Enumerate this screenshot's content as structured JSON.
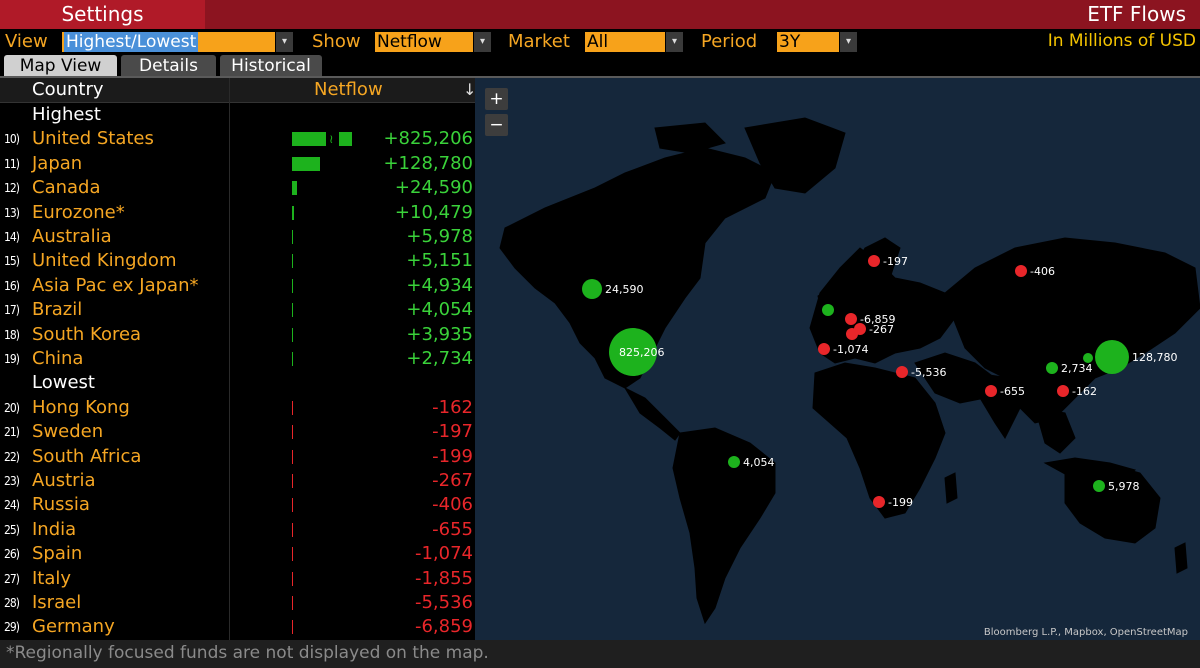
{
  "header": {
    "settings_label": "Settings",
    "title": "ETF Flows"
  },
  "filters": {
    "view_label": "View",
    "view_value": "Highest/Lowest",
    "show_label": "Show",
    "show_value": "Netflow",
    "market_label": "Market",
    "market_value": "All",
    "period_label": "Period",
    "period_value": "3Y",
    "units": "In Millions of USD",
    "dropdown_glyph": "▾"
  },
  "tabs": [
    {
      "label": "Map View",
      "active": true
    },
    {
      "label": "Details",
      "active": false
    },
    {
      "label": "Historical",
      "active": false
    }
  ],
  "table": {
    "col_country": "Country",
    "col_netflow": "Netflow",
    "sort_glyph": "↓",
    "highest_label": "Highest",
    "lowest_label": "Lowest",
    "highest": [
      {
        "rank": "10)",
        "country": "United States",
        "value": "+825,206",
        "flow": 825206
      },
      {
        "rank": "11)",
        "country": "Japan",
        "value": "+128,780",
        "flow": 128780
      },
      {
        "rank": "12)",
        "country": "Canada",
        "value": "+24,590",
        "flow": 24590
      },
      {
        "rank": "13)",
        "country": "Eurozone*",
        "value": "+10,479",
        "flow": 10479
      },
      {
        "rank": "14)",
        "country": "Australia",
        "value": "+5,978",
        "flow": 5978
      },
      {
        "rank": "15)",
        "country": "United Kingdom",
        "value": "+5,151",
        "flow": 5151
      },
      {
        "rank": "16)",
        "country": "Asia Pac ex Japan*",
        "value": "+4,934",
        "flow": 4934
      },
      {
        "rank": "17)",
        "country": "Brazil",
        "value": "+4,054",
        "flow": 4054
      },
      {
        "rank": "18)",
        "country": "South Korea",
        "value": "+3,935",
        "flow": 3935
      },
      {
        "rank": "19)",
        "country": "China",
        "value": "+2,734",
        "flow": 2734
      }
    ],
    "lowest": [
      {
        "rank": "20)",
        "country": "Hong Kong",
        "value": "-162",
        "flow": -162
      },
      {
        "rank": "21)",
        "country": "Sweden",
        "value": "-197",
        "flow": -197
      },
      {
        "rank": "22)",
        "country": "South Africa",
        "value": "-199",
        "flow": -199
      },
      {
        "rank": "23)",
        "country": "Austria",
        "value": "-267",
        "flow": -267
      },
      {
        "rank": "24)",
        "country": "Russia",
        "value": "-406",
        "flow": -406
      },
      {
        "rank": "25)",
        "country": "India",
        "value": "-655",
        "flow": -655
      },
      {
        "rank": "26)",
        "country": "Spain",
        "value": "-1,074",
        "flow": -1074
      },
      {
        "rank": "27)",
        "country": "Italy",
        "value": "-1,855",
        "flow": -1855
      },
      {
        "rank": "28)",
        "country": "Israel",
        "value": "-5,536",
        "flow": -5536
      },
      {
        "rank": "29)",
        "country": "Germany",
        "value": "-6,859",
        "flow": -6859
      }
    ]
  },
  "map": {
    "zoom_in": "+",
    "zoom_out": "−",
    "attribution": "Bloomberg L.P., Mapbox, OpenStreetMap",
    "markers": [
      {
        "country": "United States",
        "label": "825,206",
        "type": "pos"
      },
      {
        "country": "Japan",
        "label": "128,780",
        "type": "pos"
      },
      {
        "country": "Canada",
        "label": "24,590",
        "type": "pos"
      },
      {
        "country": "Australia",
        "label": "5,978",
        "type": "pos"
      },
      {
        "country": "Brazil",
        "label": "4,054",
        "type": "pos"
      },
      {
        "country": "China",
        "label": "2,734",
        "type": "pos"
      },
      {
        "country": "South Korea",
        "label": "",
        "type": "pos"
      },
      {
        "country": "United Kingdom",
        "label": "",
        "type": "pos"
      },
      {
        "country": "Sweden",
        "label": "-197",
        "type": "neg"
      },
      {
        "country": "Russia",
        "label": "-406",
        "type": "neg"
      },
      {
        "country": "Germany",
        "label": "-6,859",
        "type": "neg"
      },
      {
        "country": "Austria",
        "label": "-267",
        "type": "neg"
      },
      {
        "country": "Italy",
        "label": "",
        "type": "neg"
      },
      {
        "country": "Spain",
        "label": "-1,074",
        "type": "neg"
      },
      {
        "country": "Israel",
        "label": "-5,536",
        "type": "neg"
      },
      {
        "country": "India",
        "label": "-655",
        "type": "neg"
      },
      {
        "country": "Hong Kong",
        "label": "-162",
        "type": "neg"
      },
      {
        "country": "South Africa",
        "label": "-199",
        "type": "neg"
      }
    ]
  },
  "footer": {
    "note": "*Regionally focused funds are not displayed on the map."
  },
  "colors": {
    "positive": "#1db21d",
    "negative": "#e8262a",
    "accent": "#f5a623",
    "header_red": "#8c1420"
  }
}
